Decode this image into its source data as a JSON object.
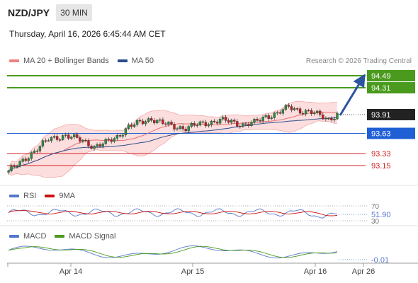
{
  "header": {
    "symbol": "NZD/JPY",
    "timeframe": "30 MIN",
    "datetime": "Thursday, April 16, 2026 6:45:44 AM CET"
  },
  "main_legend": {
    "items": [
      {
        "label": "MA 20 + Bollinger Bands",
        "color": "#f08080"
      },
      {
        "label": "MA 50",
        "color": "#2b4c8c"
      }
    ],
    "credit": "Research © 2026 Trading Central"
  },
  "levels": [
    {
      "value": "94.49",
      "kind": "target",
      "line_color": "#4a9a1e",
      "tag_bg": "#4a9a1e",
      "tag_fg": "#ffffff"
    },
    {
      "value": "94.31",
      "kind": "target",
      "line_color": "#4a9a1e",
      "tag_bg": "#4a9a1e",
      "tag_fg": "#ffffff"
    },
    {
      "value": "93.91",
      "kind": "last",
      "line_color": "#555555",
      "tag_bg": "#222222",
      "tag_fg": "#ffffff"
    },
    {
      "value": "93.63",
      "kind": "pivot",
      "line_color": "#1f5fd6",
      "tag_bg": "#1f5fd6",
      "tag_fg": "#ffffff"
    },
    {
      "value": "93.33",
      "kind": "support",
      "line_color": "#d42020",
      "tag_bg": "none",
      "tag_fg": "#d42020"
    },
    {
      "value": "93.15",
      "kind": "support",
      "line_color": "#d42020",
      "tag_bg": "none",
      "tag_fg": "#d42020"
    }
  ],
  "rsi_panel": {
    "legend": [
      {
        "label": "RSI",
        "color": "#5577cc"
      },
      {
        "label": "9MA",
        "color": "#cc1111"
      }
    ],
    "levels": [
      "70",
      "30"
    ],
    "value": "51.90"
  },
  "macd_panel": {
    "legend": [
      {
        "label": "MACD",
        "color": "#5577cc"
      },
      {
        "label": "MACD Signal",
        "color": "#4a9a1e"
      }
    ],
    "value": "-0.01"
  },
  "x_axis": {
    "labels": [
      "Apr 14",
      "Apr 15",
      "Apr 16",
      "Apr 26"
    ]
  },
  "chart_data": {
    "type": "line",
    "title": "",
    "x": [
      "Apr 14",
      "Apr 15",
      "Apr 16"
    ],
    "series": [
      {
        "name": "MA 20 + Bollinger Bands"
      },
      {
        "name": "MA 50"
      }
    ]
  }
}
